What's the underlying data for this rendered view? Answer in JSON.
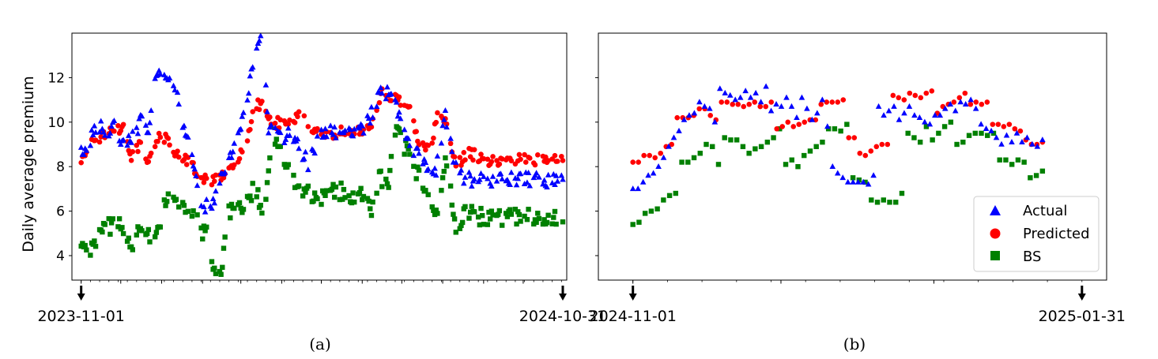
{
  "colors": {
    "actual": "#0000ff",
    "predicted": "#ff0000",
    "bs": "#008000",
    "axes": "#000000"
  },
  "chart_data": [
    {
      "type": "scatter",
      "caption": "(a)",
      "ylabel": "Daily average premium",
      "ylim": [
        2.9,
        14.0
      ],
      "yticks": [
        4,
        6,
        8,
        10,
        12
      ],
      "xlim": [
        "2023-10-25",
        "2024-11-03"
      ],
      "date_markers": [
        {
          "date": "2023-11-01",
          "label": "2023-11-01"
        },
        {
          "date": "2024-10-31",
          "label": "2024-10-31"
        }
      ],
      "x_start": "2023-11-01",
      "x_end": "2024-10-31",
      "series": [
        {
          "name": "Actual",
          "marker": "triangle",
          "anchors": [
            [
              0,
              8.7
            ],
            [
              4,
              8.5
            ],
            [
              10,
              9.9
            ],
            [
              18,
              9.6
            ],
            [
              25,
              9.8
            ],
            [
              32,
              9.1
            ],
            [
              40,
              9.3
            ],
            [
              46,
              10.2
            ],
            [
              50,
              9.4
            ],
            [
              56,
              11.9
            ],
            [
              66,
              12.2
            ],
            [
              72,
              11.4
            ],
            [
              76,
              9.9
            ],
            [
              82,
              9.4
            ],
            [
              90,
              6.4
            ],
            [
              98,
              6.2
            ],
            [
              105,
              7.3
            ],
            [
              115,
              8.7
            ],
            [
              125,
              10.9
            ],
            [
              137,
              14.3
            ],
            [
              142,
              9.8
            ],
            [
              152,
              9.4
            ],
            [
              160,
              9.4
            ],
            [
              172,
              8.2
            ],
            [
              182,
              9.4
            ],
            [
              196,
              9.6
            ],
            [
              208,
              9.4
            ],
            [
              218,
              10.1
            ],
            [
              228,
              11.6
            ],
            [
              238,
              10.8
            ],
            [
              246,
              9.1
            ],
            [
              258,
              8.4
            ],
            [
              268,
              7.6
            ],
            [
              276,
              10.4
            ],
            [
              282,
              8.3
            ],
            [
              290,
              7.5
            ],
            [
              300,
              7.3
            ],
            [
              305,
              7.4
            ]
          ],
          "jitter": 0.35
        },
        {
          "name": "Predicted",
          "marker": "circle",
          "anchors": [
            [
              0,
              8.3
            ],
            [
              5,
              8.7
            ],
            [
              10,
              9.2
            ],
            [
              18,
              9.4
            ],
            [
              25,
              9.6
            ],
            [
              32,
              9.8
            ],
            [
              38,
              8.5
            ],
            [
              44,
              9.0
            ],
            [
              50,
              8.3
            ],
            [
              58,
              9.3
            ],
            [
              66,
              9.2
            ],
            [
              70,
              8.7
            ],
            [
              80,
              8.3
            ],
            [
              88,
              7.8
            ],
            [
              96,
              7.3
            ],
            [
              105,
              7.5
            ],
            [
              115,
              8.0
            ],
            [
              125,
              8.9
            ],
            [
              132,
              10.8
            ],
            [
              138,
              10.8
            ],
            [
              145,
              9.9
            ],
            [
              158,
              10.1
            ],
            [
              168,
              10.3
            ],
            [
              175,
              9.6
            ],
            [
              186,
              9.4
            ],
            [
              196,
              9.6
            ],
            [
              206,
              9.5
            ],
            [
              214,
              9.7
            ],
            [
              222,
              10.0
            ],
            [
              228,
              11.4
            ],
            [
              238,
              11.0
            ],
            [
              248,
              10.9
            ],
            [
              256,
              8.9
            ],
            [
              265,
              8.7
            ],
            [
              270,
              10.5
            ],
            [
              276,
              10.0
            ],
            [
              284,
              8.0
            ],
            [
              292,
              8.6
            ],
            [
              300,
              8.5
            ],
            [
              305,
              8.3
            ]
          ],
          "jitter": 0.25
        },
        {
          "name": "BS",
          "marker": "square",
          "anchors": [
            [
              0,
              4.2
            ],
            [
              6,
              4.0
            ],
            [
              12,
              4.8
            ],
            [
              18,
              5.4
            ],
            [
              24,
              5.3
            ],
            [
              30,
              5.5
            ],
            [
              38,
              4.5
            ],
            [
              44,
              5.2
            ],
            [
              50,
              4.9
            ],
            [
              56,
              4.6
            ],
            [
              62,
              6.2
            ],
            [
              70,
              6.6
            ],
            [
              76,
              6.4
            ],
            [
              84,
              6.1
            ],
            [
              90,
              5.2
            ],
            [
              96,
              5.0
            ],
            [
              100,
              3.3
            ],
            [
              106,
              3.4
            ],
            [
              112,
              5.9
            ],
            [
              118,
              6.2
            ],
            [
              126,
              6.3
            ],
            [
              132,
              7.3
            ],
            [
              138,
              5.2
            ],
            [
              144,
              9.4
            ],
            [
              150,
              9.0
            ],
            [
              158,
              7.7
            ],
            [
              166,
              6.6
            ],
            [
              172,
              7.0
            ],
            [
              180,
              6.5
            ],
            [
              188,
              7.1
            ],
            [
              196,
              6.9
            ],
            [
              204,
              6.6
            ],
            [
              214,
              6.9
            ],
            [
              220,
              6.1
            ],
            [
              226,
              7.6
            ],
            [
              232,
              7.0
            ],
            [
              238,
              9.6
            ],
            [
              248,
              8.6
            ],
            [
              256,
              7.6
            ],
            [
              264,
              6.2
            ],
            [
              270,
              5.8
            ],
            [
              276,
              8.2
            ],
            [
              284,
              5.3
            ],
            [
              292,
              5.9
            ],
            [
              300,
              5.8
            ],
            [
              305,
              5.7
            ]
          ],
          "jitter": 0.4
        }
      ]
    },
    {
      "type": "scatter",
      "caption": "(b)",
      "ylabel": "",
      "ylim": [
        2.9,
        14.0
      ],
      "xlim": [
        "2024-10-25",
        "2025-02-05"
      ],
      "date_markers": [
        {
          "date": "2024-11-01",
          "label": "2024-11-01"
        },
        {
          "date": "2025-01-31",
          "label": "2025-01-31"
        }
      ],
      "x_start": "2024-11-01",
      "x_end": "2025-01-31",
      "legend": {
        "position": "lower-right",
        "entries": [
          "Actual",
          "Predicted",
          "BS"
        ]
      },
      "series": [
        {
          "name": "Actual",
          "marker": "triangle",
          "points": [
            7.0,
            7.0,
            7.3,
            7.6,
            7.7,
            8.0,
            8.4,
            8.9,
            9.3,
            9.6,
            10.1,
            10.3,
            10.4,
            10.9,
            10.7,
            10.6,
            10.0,
            11.5,
            11.3,
            11.2,
            11.0,
            11.1,
            11.4,
            11.1,
            11.3,
            10.9,
            11.6,
            10.5,
            10.8,
            10.7,
            11.1,
            10.7,
            10.2,
            11.1,
            10.6,
            10.1,
            10.4,
            11.0,
            9.8,
            8.0,
            7.7,
            7.5,
            7.3,
            7.3,
            7.3,
            7.3,
            7.2,
            7.6,
            10.7,
            10.3,
            10.5,
            10.7,
            10.1,
            10.4,
            10.7,
            10.3,
            10.2,
            10.0,
            9.9,
            10.3,
            10.3,
            10.6,
            10.8,
            10.5,
            10.9,
            10.8,
            11.0,
            10.6,
            9.9,
            9.7,
            9.6,
            9.3,
            9.0,
            9.4,
            9.1,
            9.5,
            9.1,
            9.3,
            9.0,
            8.9,
            9.2
          ]
        },
        {
          "name": "Predicted",
          "marker": "circle",
          "points": [
            8.2,
            8.2,
            8.5,
            8.5,
            8.4,
            8.6,
            8.9,
            9.0,
            10.2,
            10.2,
            10.2,
            10.3,
            10.6,
            10.6,
            10.3,
            10.1,
            10.9,
            10.9,
            10.8,
            10.8,
            10.7,
            10.8,
            10.9,
            10.7,
            10.7,
            10.9,
            9.7,
            9.8,
            10.0,
            9.8,
            9.9,
            10.0,
            10.1,
            10.1,
            10.8,
            10.9,
            10.9,
            10.9,
            11.0,
            9.3,
            9.3,
            8.6,
            8.5,
            8.7,
            8.9,
            9.0,
            9.0,
            11.2,
            11.1,
            11.0,
            11.3,
            11.2,
            11.1,
            11.3,
            11.4,
            10.4,
            10.7,
            10.8,
            10.9,
            11.1,
            11.3,
            10.8,
            10.9,
            10.8,
            10.9,
            9.9,
            9.9,
            9.8,
            9.9,
            9.7,
            9.6,
            9.2,
            9.0,
            9.0,
            9.1
          ]
        },
        {
          "name": "BS",
          "marker": "square",
          "points": [
            5.4,
            5.5,
            5.9,
            6.0,
            6.1,
            6.5,
            6.7,
            6.8,
            8.2,
            8.2,
            8.4,
            8.6,
            9.0,
            8.9,
            8.1,
            9.3,
            9.2,
            9.2,
            8.9,
            8.6,
            8.8,
            8.9,
            9.1,
            9.3,
            9.7,
            8.1,
            8.3,
            8.0,
            8.5,
            8.7,
            8.9,
            9.1,
            9.7,
            9.7,
            9.6,
            9.9,
            7.5,
            7.4,
            7.3,
            6.5,
            6.4,
            6.5,
            6.4,
            6.4,
            6.8,
            9.5,
            9.3,
            9.1,
            9.8,
            9.2,
            9.5,
            9.8,
            10.0,
            9.0,
            9.1,
            9.4,
            9.5,
            9.5,
            9.4,
            9.5,
            8.3,
            8.3,
            8.1,
            8.3,
            8.2,
            7.5,
            7.6,
            7.8
          ]
        }
      ]
    }
  ]
}
